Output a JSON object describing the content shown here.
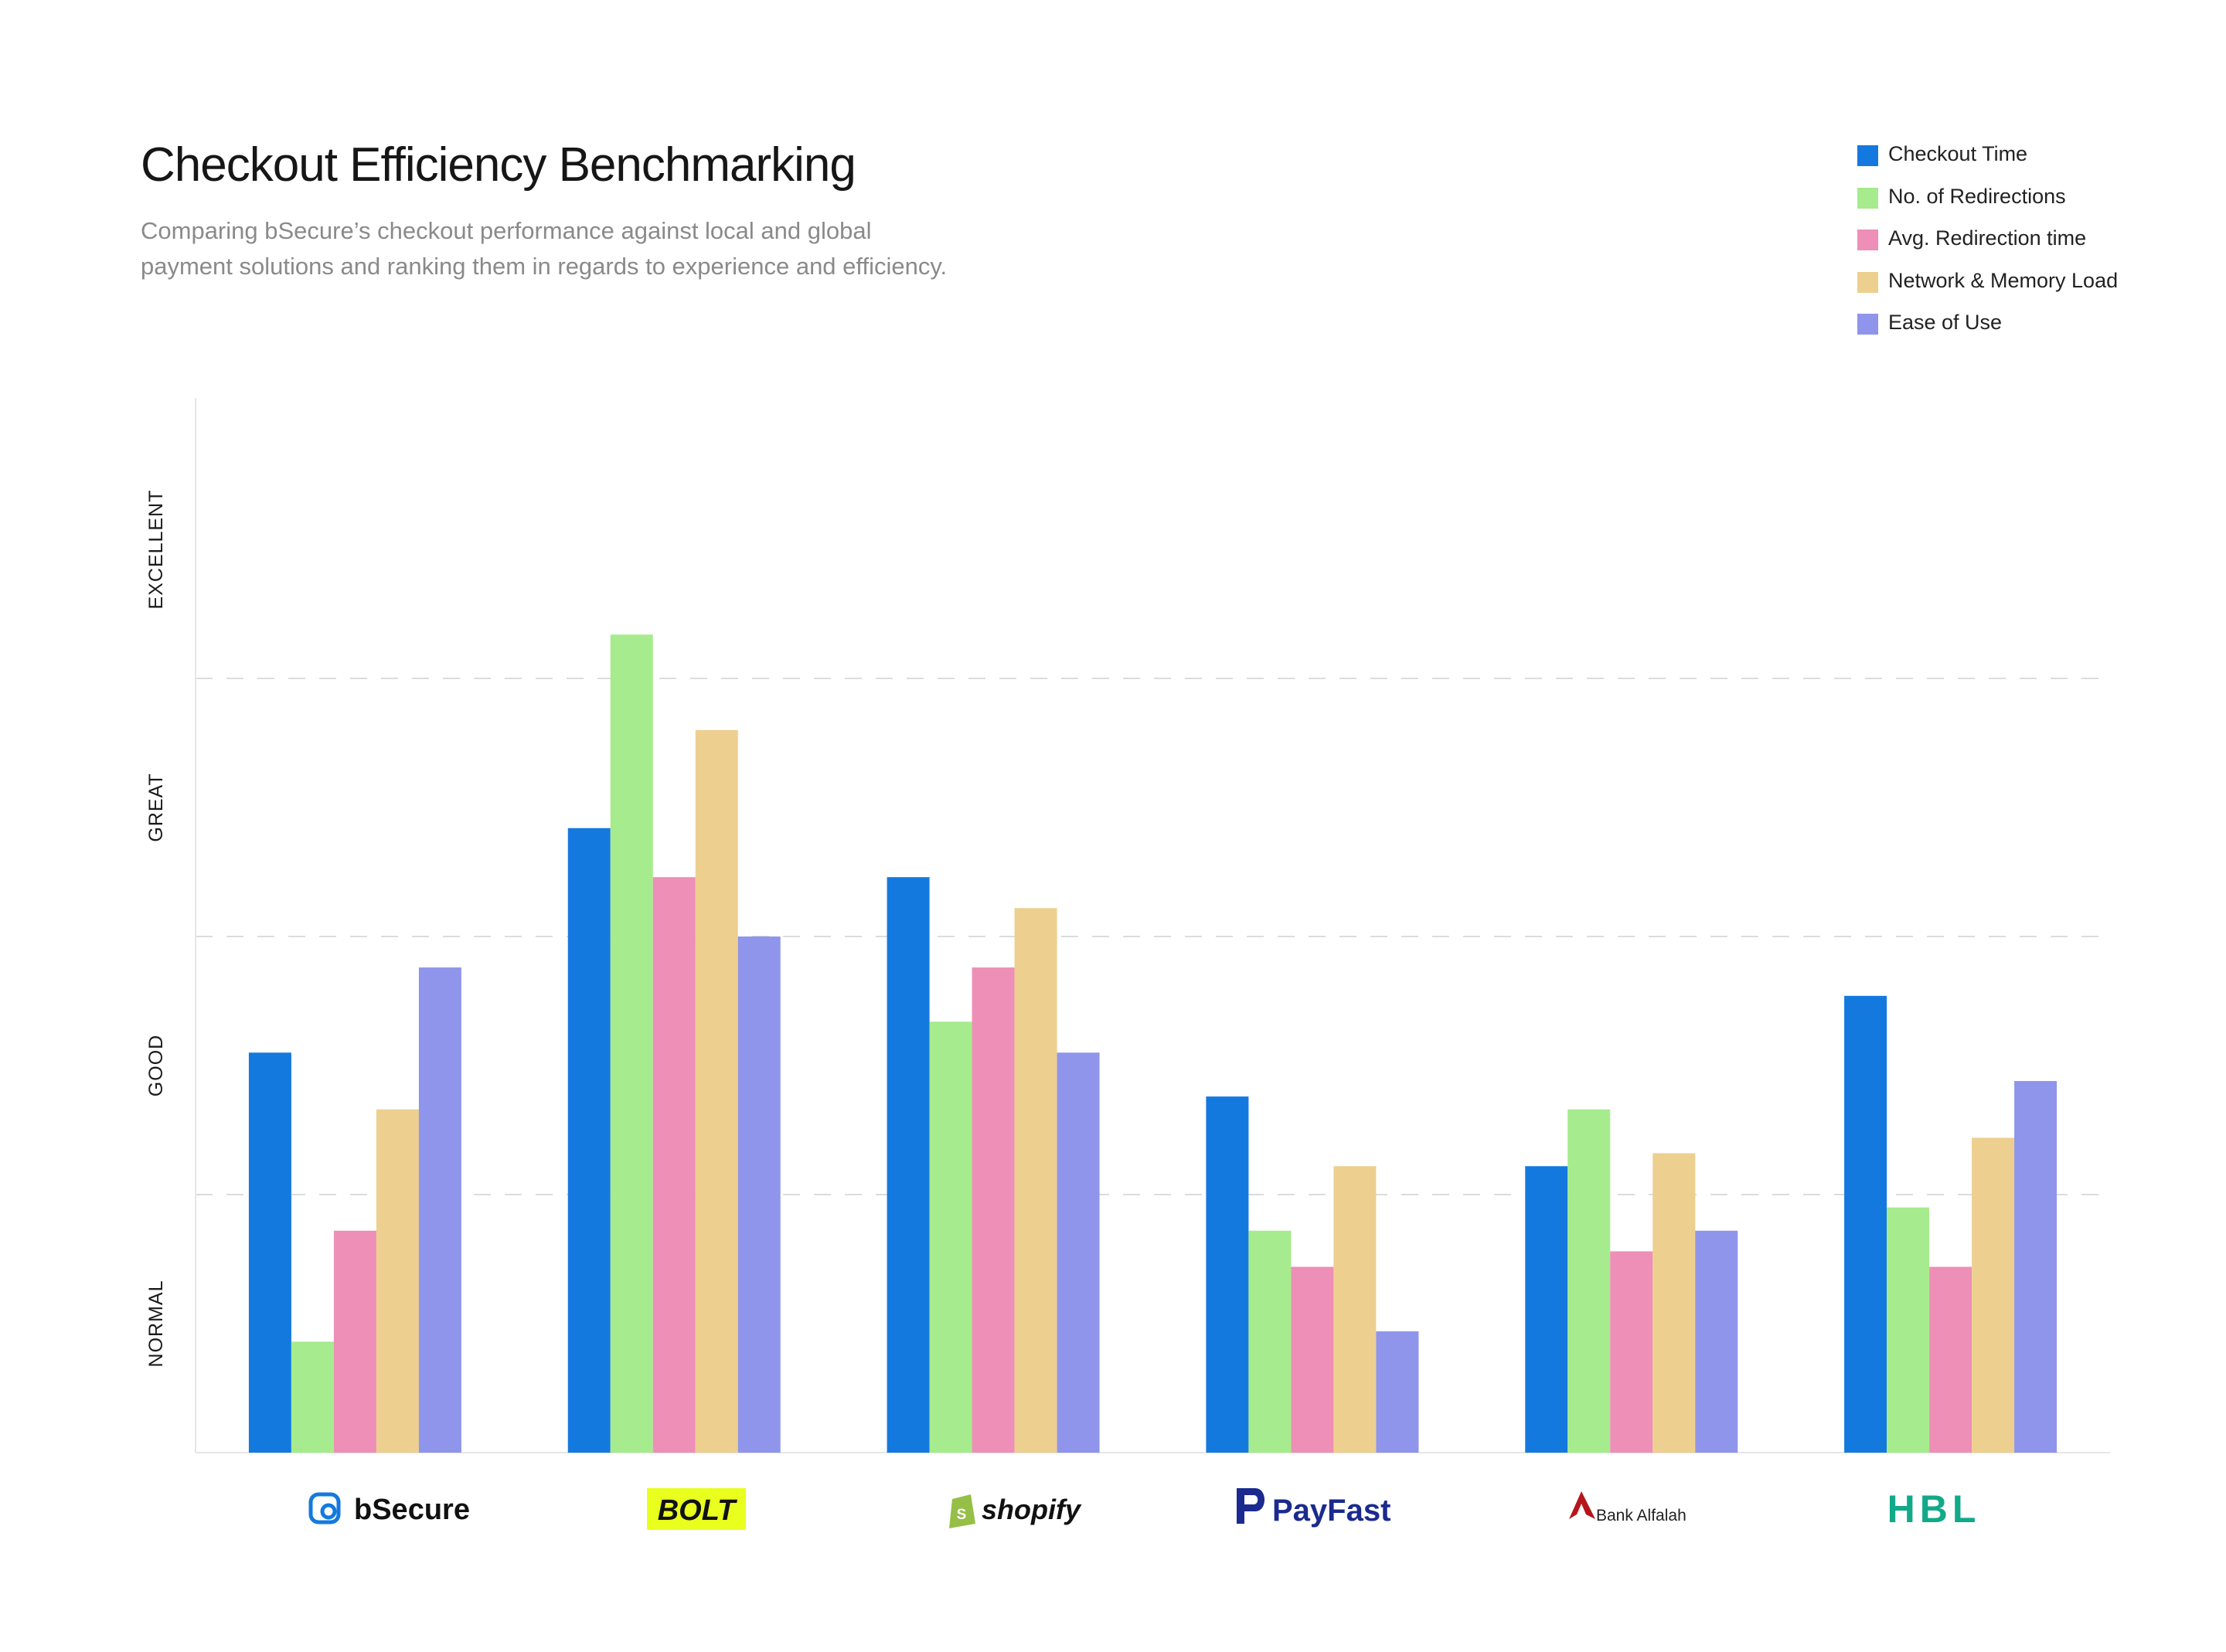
{
  "chart_data": {
    "type": "bar",
    "title": "Checkout Efficiency Benchmarking",
    "subtitle_lines": [
      "Comparing bSecure’s checkout performance against local and global",
      "payment solutions and ranking them in regards to experience and efficiency."
    ],
    "xlabel": "",
    "ylabel": "",
    "ylim": [
      0,
      4
    ],
    "y_tick_labels": [
      "NORMAL",
      "GOOD",
      "GREAT",
      "EXCELLENT"
    ],
    "grid": "dashed horizontal",
    "legend_position": "top-right",
    "categories": [
      "bSecure",
      "BOLT",
      "shopify",
      "PayFast",
      "Bank Alfalah",
      "HBL"
    ],
    "series": [
      {
        "name": "Checkout Time",
        "color": "#1479DE",
        "values": [
          1.55,
          2.42,
          2.23,
          1.38,
          1.11,
          1.77
        ]
      },
      {
        "name": "No. of Redirections",
        "color": "#A6EB8D",
        "values": [
          0.43,
          3.17,
          1.67,
          0.86,
          1.33,
          0.95
        ]
      },
      {
        "name": "Avg. Redirection time",
        "color": "#ED8FB6",
        "values": [
          0.86,
          2.23,
          1.88,
          0.72,
          0.78,
          0.72
        ]
      },
      {
        "name": "Network & Memory Load",
        "color": "#EDCF8F",
        "values": [
          1.33,
          2.8,
          2.11,
          1.11,
          1.16,
          1.22
        ]
      },
      {
        "name": "Ease of Use",
        "color": "#8F95EB",
        "values": [
          1.88,
          2.0,
          1.55,
          0.47,
          0.86,
          1.44
        ]
      }
    ]
  }
}
